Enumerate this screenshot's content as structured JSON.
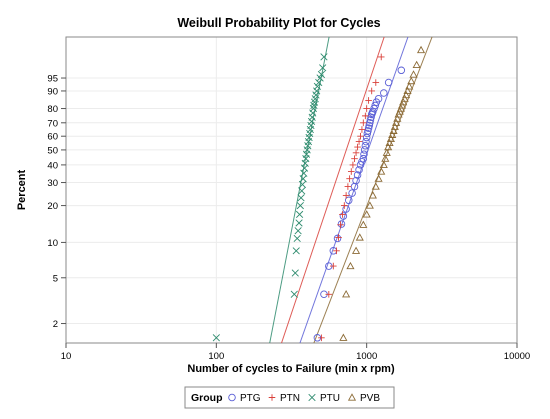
{
  "chart_data": {
    "type": "scatter",
    "title": "Weibull Probability Plot for Cycles",
    "xlabel": "Number of cycles to Failure (min x rpm)",
    "ylabel": "Percent",
    "x_scale": "log",
    "y_scale": "weibull-probability",
    "xlim": [
      10,
      10000
    ],
    "ylim": [
      1.35,
      99.9
    ],
    "x_ticks": [
      10,
      100,
      1000,
      10000
    ],
    "y_ticks": [
      2,
      5,
      10,
      20,
      30,
      40,
      50,
      60,
      70,
      80,
      90,
      95
    ],
    "grid": true,
    "legend": {
      "title": "Group",
      "placement": "bottom"
    },
    "series": [
      {
        "name": "PTG",
        "marker": "circle",
        "color": "#5a5fd6",
        "fit": {
          "x_at_2pct": 400,
          "x_at_99pct": 1690
        },
        "x": [
          470,
          520,
          560,
          600,
          640,
          680,
          700,
          730,
          760,
          800,
          830,
          850,
          870,
          890,
          910,
          930,
          950,
          960,
          970,
          980,
          990,
          1000,
          1010,
          1020,
          1030,
          1040,
          1050,
          1060,
          1070,
          1080,
          1090,
          1100,
          1120,
          1140,
          1160,
          1200,
          1300,
          1400,
          1700
        ],
        "y": [
          1.5,
          3.6,
          6.3,
          8.5,
          10.8,
          14.2,
          16.5,
          18.8,
          22,
          25,
          28,
          31,
          34,
          37,
          40,
          42,
          44,
          47,
          50,
          53,
          56,
          59,
          62,
          64,
          66,
          68,
          70,
          72,
          74,
          76,
          77,
          78,
          80,
          82,
          84,
          86,
          89,
          93.5,
          97
        ]
      },
      {
        "name": "PTN",
        "marker": "plus",
        "color": "#d9403a",
        "fit": {
          "x_at_2pct": 300,
          "x_at_99pct": 1180
        },
        "x": [
          500,
          560,
          600,
          630,
          650,
          670,
          690,
          710,
          730,
          750,
          770,
          790,
          810,
          830,
          850,
          870,
          890,
          910,
          930,
          950,
          980,
          1000,
          1030,
          1080,
          1150,
          1250
        ],
        "y": [
          1.5,
          3.6,
          6.3,
          8.5,
          11,
          14,
          17,
          20,
          24,
          28,
          32,
          36,
          40,
          44,
          48,
          52,
          56,
          60,
          65,
          70,
          75,
          80,
          85,
          90,
          93.5,
          99
        ]
      },
      {
        "name": "PTU",
        "marker": "x",
        "color": "#2e8b6e",
        "fit": {
          "x_at_2pct": 240,
          "x_at_99pct": 530
        },
        "x": [
          100,
          330,
          335,
          340,
          345,
          350,
          355,
          358,
          362,
          366,
          370,
          374,
          378,
          382,
          386,
          390,
          394,
          398,
          402,
          406,
          410,
          414,
          418,
          422,
          426,
          430,
          434,
          438,
          442,
          446,
          450,
          455,
          460,
          465,
          470,
          480,
          490,
          500,
          510,
          520
        ],
        "y": [
          1.5,
          3.6,
          5.5,
          8.5,
          10.8,
          12.5,
          14.5,
          17,
          20,
          23,
          26,
          29,
          32,
          35,
          38,
          41,
          44,
          47,
          50,
          53,
          56,
          59,
          62,
          65,
          68,
          71,
          74,
          77,
          80,
          82,
          84,
          86,
          88,
          90,
          92,
          93.5,
          95,
          96,
          97.5,
          99
        ]
      },
      {
        "name": "PVB",
        "marker": "triangle",
        "color": "#8b6a35",
        "fit": {
          "x_at_2pct": 500,
          "x_at_99pct": 2420
        },
        "x": [
          700,
          730,
          780,
          850,
          900,
          950,
          1000,
          1050,
          1100,
          1150,
          1200,
          1250,
          1300,
          1330,
          1360,
          1390,
          1420,
          1450,
          1480,
          1510,
          1540,
          1570,
          1600,
          1630,
          1660,
          1690,
          1720,
          1750,
          1790,
          1830,
          1870,
          1920,
          1980,
          2050,
          2150,
          2300
        ],
        "y": [
          1.5,
          3.6,
          6.3,
          8.5,
          11,
          14,
          17,
          20,
          24,
          28,
          32,
          36,
          40,
          44,
          48,
          52,
          55,
          58,
          61,
          64,
          67,
          70,
          73,
          76,
          78,
          80,
          82,
          84,
          86,
          88,
          90,
          92,
          94,
          96,
          98,
          99.5
        ]
      }
    ]
  }
}
